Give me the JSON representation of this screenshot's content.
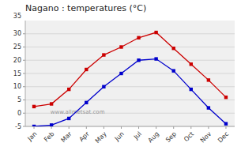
{
  "chart_data": {
    "type": "line",
    "title": "Nagano : temperatures (°C)",
    "categories": [
      "Jan",
      "Feb",
      "Mar",
      "Apr",
      "May",
      "Jun",
      "Jul",
      "Aug",
      "Sep",
      "Oct",
      "Nov",
      "Dec"
    ],
    "series": [
      {
        "color": "#cc0000",
        "marker": "square",
        "values": [
          2.5,
          3.5,
          9.0,
          16.5,
          22.0,
          25.0,
          28.5,
          30.5,
          24.5,
          18.5,
          12.5,
          6.0
        ]
      },
      {
        "color": "#0000cc",
        "marker": "square",
        "values": [
          -5.0,
          -4.5,
          -2.0,
          4.0,
          10.0,
          15.0,
          20.0,
          20.5,
          16.0,
          9.0,
          2.0,
          -4.0
        ]
      }
    ],
    "ylim": [
      -5,
      35
    ],
    "yticks": [
      -5,
      0,
      5,
      10,
      15,
      20,
      25,
      30
    ],
    "grid": true,
    "annotations": [
      {
        "text": "35",
        "y": 35
      },
      {
        "text": "www.allmetsat.com"
      }
    ]
  }
}
